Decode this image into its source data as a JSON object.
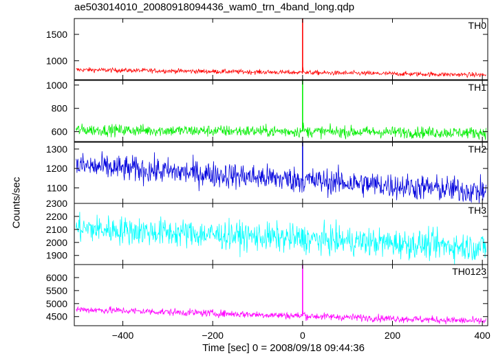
{
  "chart_data": {
    "type": "line",
    "title": "ae503014010_20080918094436_wam0_trn_4band_long.qdp",
    "xlabel": "Time [sec] 0 = 2008/09/18 09:44:36",
    "ylabel": "Counts/sec",
    "xlim": [
      -508,
      412
    ],
    "x_ticks": [
      -400,
      -200,
      0,
      200,
      400
    ],
    "x_tick_labels": [
      "−400",
      "−200",
      "0",
      "200",
      "400"
    ],
    "grid": false,
    "panels": [
      {
        "name": "TH0",
        "color": "#ff0000",
        "ylim": [
          640,
          1800
        ],
        "y_ticks": [
          1000,
          1500
        ],
        "baseline_start": 830,
        "baseline_end": 730,
        "noise": 22,
        "peak": 1800,
        "peak_time": 0,
        "decay": 120
      },
      {
        "name": "TH1",
        "color": "#00ee00",
        "ylim": [
          515,
          1040
        ],
        "y_ticks": [
          600,
          800,
          1000
        ],
        "baseline_start": 615,
        "baseline_end": 590,
        "noise": 25,
        "peak": 1040,
        "peak_time": 0,
        "decay": 50
      },
      {
        "name": "TH2",
        "color": "#0000dd",
        "ylim": [
          1020,
          1335
        ],
        "y_ticks": [
          1100,
          1200,
          1300
        ],
        "baseline_start": 1215,
        "baseline_end": 1080,
        "noise": 34,
        "peak": 1335,
        "peak_time": 0,
        "decay": 0
      },
      {
        "name": "TH3",
        "color": "#00ffff",
        "ylim": [
          1830,
          2300
        ],
        "y_ticks": [
          1900,
          2000,
          2100,
          2200,
          2300
        ],
        "baseline_start": 2110,
        "baseline_end": 1960,
        "noise": 55,
        "peak": 2100,
        "peak_time": 0,
        "decay": 0
      },
      {
        "name": "TH0123",
        "color": "#ff00ff",
        "ylim": [
          4150,
          6500
        ],
        "y_ticks": [
          4500,
          5000,
          5500,
          6000
        ],
        "baseline_start": 4780,
        "baseline_end": 4320,
        "noise": 70,
        "peak": 6500,
        "peak_time": 0,
        "decay": 200
      }
    ]
  }
}
